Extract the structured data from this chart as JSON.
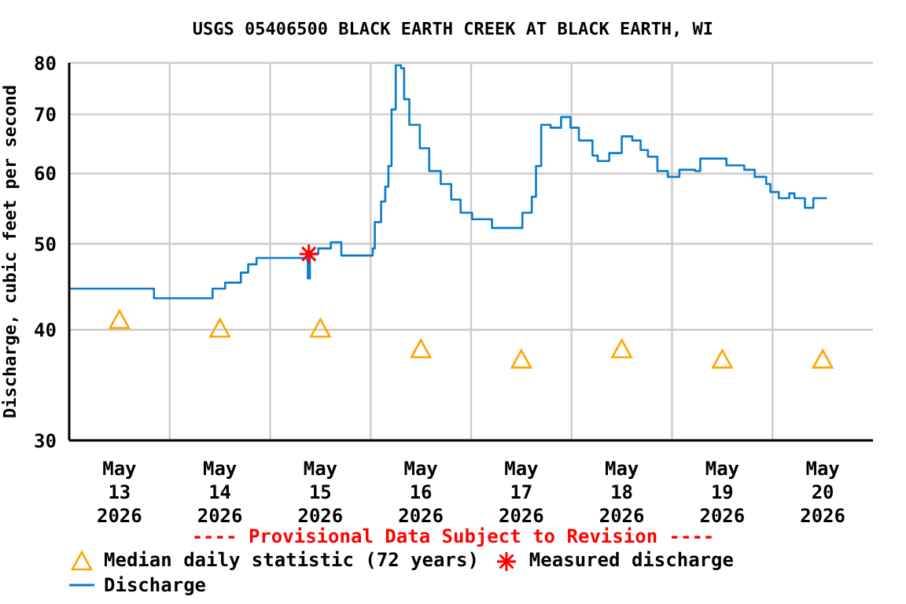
{
  "chart_data": {
    "type": "line",
    "title": "USGS 05406500 BLACK EARTH CREEK AT BLACK EARTH, WI",
    "ylabel": "Discharge, cubic feet per second",
    "annotations": [
      "---- Provisional Data Subject to Revision ----"
    ],
    "log": "y",
    "grid": true,
    "legend": "bottom",
    "xlim": [
      "2026-05-13T00:00",
      "2026-05-21T00:00"
    ],
    "xticks": [
      {
        "value": "2026-05-13T12:00",
        "label": "May\n13\n2026"
      },
      {
        "value": "2026-05-14T00:00",
        "label": null
      },
      {
        "value": "2026-05-14T12:00",
        "label": "May\n14\n2026"
      },
      {
        "value": "2026-05-15T00:00",
        "label": null
      },
      {
        "value": "2026-05-15T12:00",
        "label": "May\n15\n2026"
      },
      {
        "value": "2026-05-16T00:00",
        "label": null
      },
      {
        "value": "2026-05-16T12:00",
        "label": "May\n16\n2026"
      },
      {
        "value": "2026-05-17T00:00",
        "label": null
      },
      {
        "value": "2026-05-17T12:00",
        "label": "May\n17\n2026"
      },
      {
        "value": "2026-05-18T00:00",
        "label": null
      },
      {
        "value": "2026-05-18T12:00",
        "label": "May\n18\n2026"
      },
      {
        "value": "2026-05-19T00:00",
        "label": null
      },
      {
        "value": "2026-05-19T12:00",
        "label": "May\n19\n2026"
      },
      {
        "value": "2026-05-20T00:00",
        "label": null
      },
      {
        "value": "2026-05-20T12:00",
        "label": "May\n20\n2026"
      }
    ],
    "ylim": [
      30,
      80
    ],
    "yticks": [
      30,
      40,
      50,
      60,
      70,
      80
    ],
    "series": [
      {
        "name": "Median daily statistic (72 years)",
        "type": "scatter",
        "marker": "triangle",
        "color": "#ffa500",
        "x": [
          "2026-05-13T12:00",
          "2026-05-14T12:00",
          "2026-05-15T12:00",
          "2026-05-16T12:00",
          "2026-05-17T12:00",
          "2026-05-18T12:00",
          "2026-05-19T12:00",
          "2026-05-20T12:00"
        ],
        "values": [
          41.0,
          40.1,
          40.1,
          38.0,
          37.0,
          38.0,
          37.0,
          37.0
        ]
      },
      {
        "name": "Measured discharge",
        "type": "scatter",
        "marker": "cross",
        "color": "#ff0000",
        "x": [
          "2026-05-15T09:15"
        ],
        "values": [
          48.7
        ]
      },
      {
        "name": "Discharge",
        "type": "step",
        "marker": "none",
        "color": "#0a7bcc",
        "x": [
          "2026-05-13T00:00",
          "2026-05-13T19:45",
          "2026-05-13T20:15",
          "2026-05-14T09:30",
          "2026-05-14T10:15",
          "2026-05-14T13:15",
          "2026-05-14T17:00",
          "2026-05-14T18:45",
          "2026-05-14T20:45",
          "2026-05-15T08:45",
          "2026-05-15T09:00",
          "2026-05-15T09:30",
          "2026-05-15T11:30",
          "2026-05-15T14:30",
          "2026-05-15T17:00",
          "2026-05-15T23:00",
          "2026-05-16T00:30",
          "2026-05-16T01:00",
          "2026-05-16T02:30",
          "2026-05-16T03:30",
          "2026-05-16T04:15",
          "2026-05-16T05:00",
          "2026-05-16T06:00",
          "2026-05-16T07:15",
          "2026-05-16T08:00",
          "2026-05-16T09:15",
          "2026-05-16T11:45",
          "2026-05-16T14:00",
          "2026-05-16T16:45",
          "2026-05-16T19:15",
          "2026-05-16T21:30",
          "2026-05-17T00:15",
          "2026-05-17T05:00",
          "2026-05-17T10:15",
          "2026-05-17T12:15",
          "2026-05-17T14:30",
          "2026-05-17T15:30",
          "2026-05-17T16:45",
          "2026-05-17T19:00",
          "2026-05-17T21:30",
          "2026-05-17T23:45",
          "2026-05-18T01:45",
          "2026-05-18T05:00",
          "2026-05-18T06:15",
          "2026-05-18T09:00",
          "2026-05-18T12:00",
          "2026-05-18T14:30",
          "2026-05-18T16:30",
          "2026-05-18T18:15",
          "2026-05-18T20:30",
          "2026-05-18T23:00",
          "2026-05-19T01:45",
          "2026-05-19T05:30",
          "2026-05-19T06:45",
          "2026-05-19T10:30",
          "2026-05-19T13:00",
          "2026-05-19T17:15",
          "2026-05-19T19:45",
          "2026-05-19T22:30",
          "2026-05-19T23:30",
          "2026-05-20T01:30",
          "2026-05-20T04:00",
          "2026-05-20T05:15",
          "2026-05-20T07:45",
          "2026-05-20T09:45",
          "2026-05-20T13:00"
        ],
        "values": [
          44.5,
          44.5,
          43.4,
          43.4,
          44.5,
          45.2,
          46.4,
          47.4,
          48.2,
          48.0,
          45.7,
          48.7,
          49.4,
          50.2,
          48.5,
          48.5,
          49.4,
          52.9,
          55.8,
          58.0,
          61.2,
          70.9,
          79.5,
          78.9,
          72.8,
          68.1,
          64.1,
          60.4,
          58.4,
          56.1,
          54.2,
          53.3,
          52.1,
          52.1,
          54.2,
          56.5,
          61.2,
          68.1,
          67.6,
          69.5,
          67.6,
          65.4,
          62.9,
          62.0,
          63.3,
          66.1,
          65.4,
          63.8,
          62.7,
          60.4,
          59.5,
          60.6,
          60.4,
          62.4,
          62.4,
          61.3,
          60.6,
          59.5,
          58.4,
          57.2,
          56.3,
          57.0,
          56.3,
          54.9,
          56.3,
          56.3
        ]
      }
    ]
  }
}
